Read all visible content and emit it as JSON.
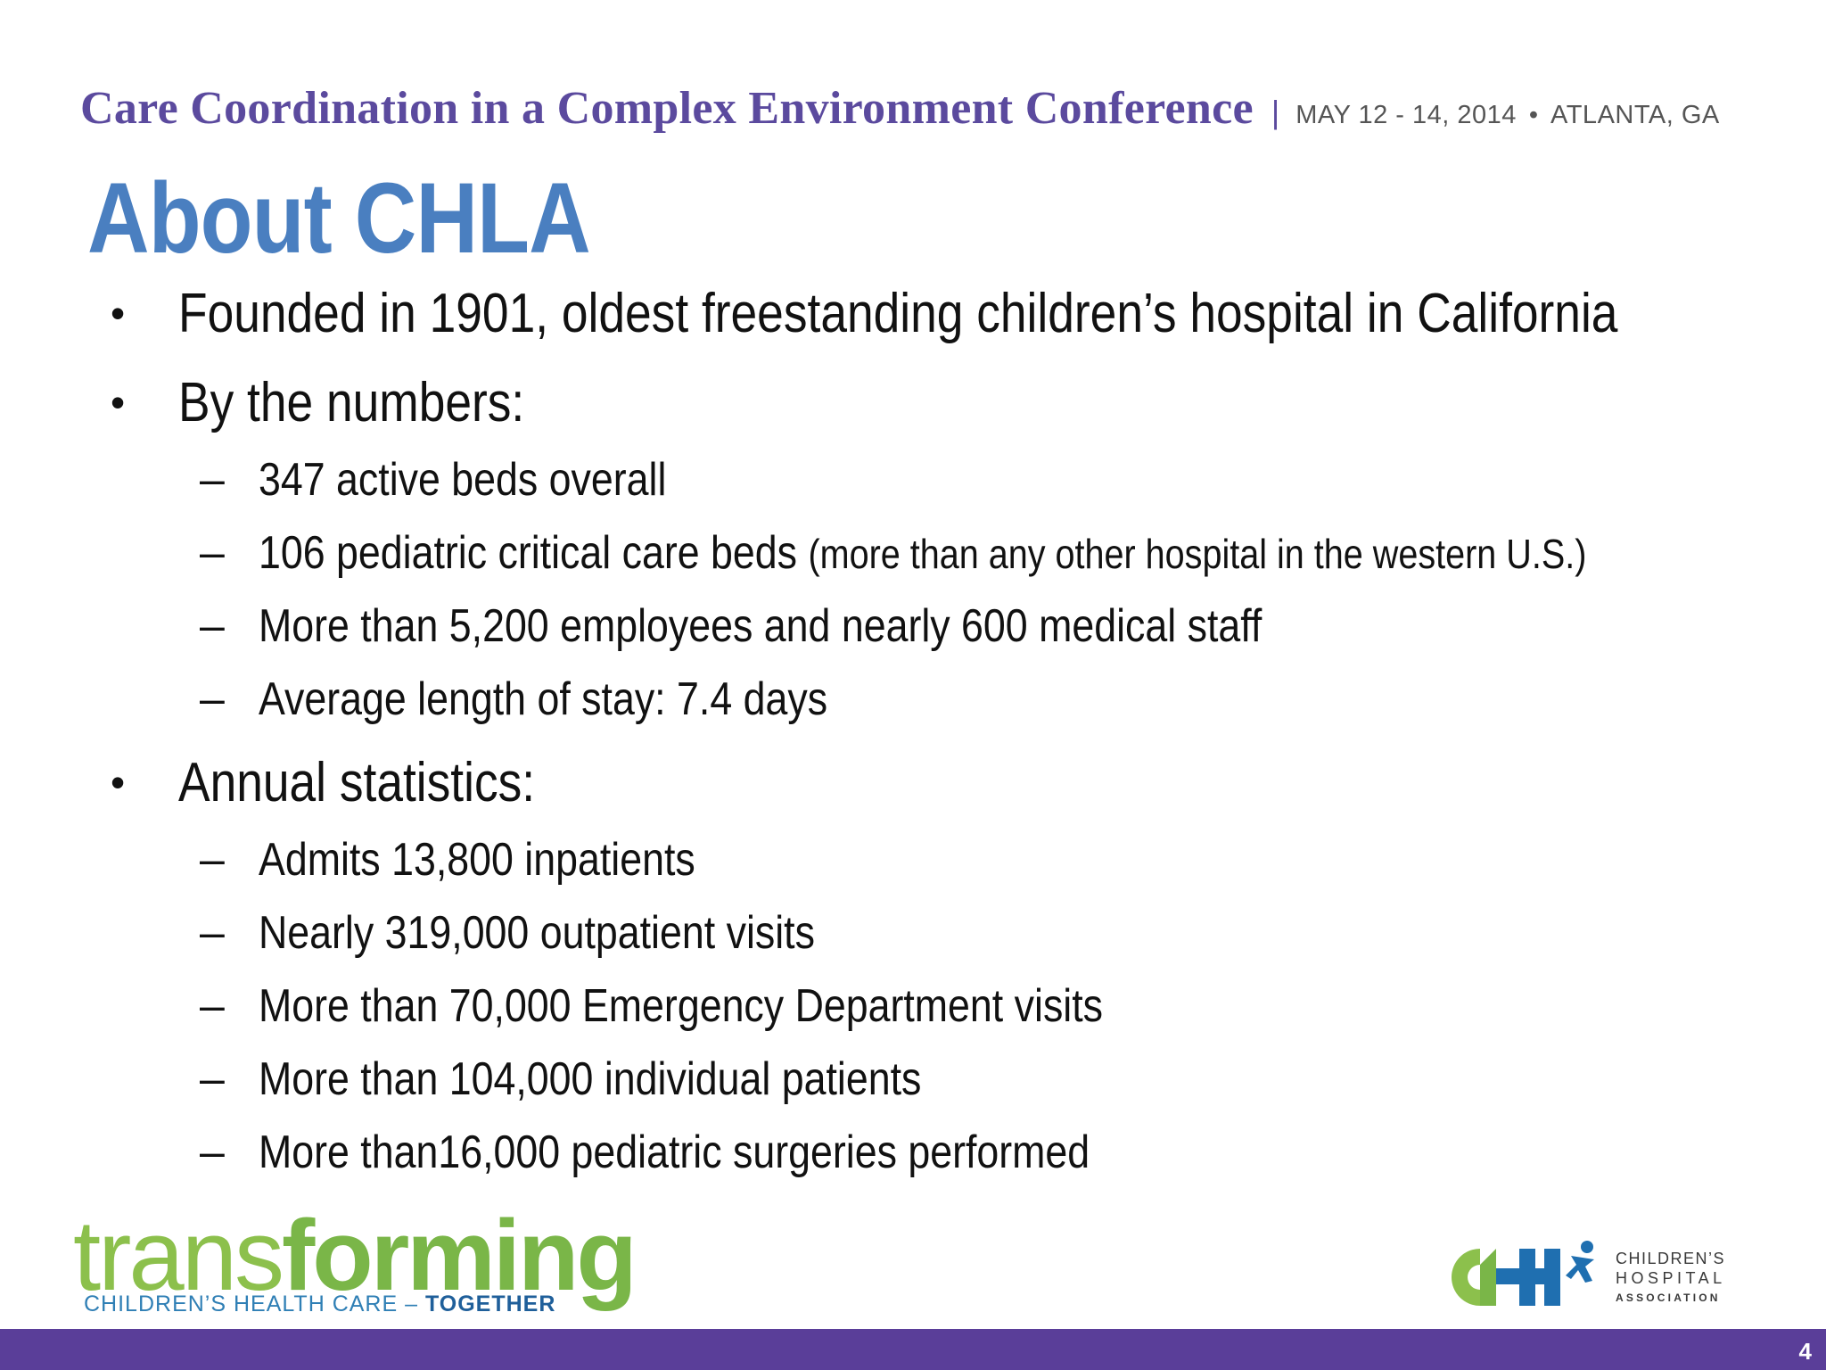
{
  "header": {
    "conference_title": "Care Coordination in a Complex Environment Conference",
    "separator": "|",
    "date": "MAY 12 - 14, 2014",
    "dot": "•",
    "location": "ATLANTA, GA"
  },
  "slide": {
    "title": "About CHLA",
    "bullet_symbol": "•",
    "dash_symbol": "–",
    "bullet1": "Founded in 1901, oldest freestanding children’s hospital in California",
    "bullet2": "By the numbers:",
    "numbers": [
      "347 active beds overall",
      "106 pediatric critical care beds",
      "More than 5,200 employees and nearly 600 medical staff",
      "Average length of stay: 7.4 days"
    ],
    "numbers_aside": "(more than any other hospital in the western U.S.)",
    "bullet3": "Annual statistics:",
    "annual": [
      "Admits 13,800 inpatients",
      "Nearly 319,000 outpatient visits",
      "More than 70,000 Emergency Department visits",
      "More than 104,000 individual patients",
      "More than16,000 pediatric surgeries performed"
    ]
  },
  "footer": {
    "logo_left_word_light": "trans",
    "logo_left_word_bold": "forming",
    "logo_left_tagline": "CHILDREN’S HEALTH CARE",
    "logo_left_tagline_dash": "–",
    "logo_left_tagline_bold": "TOGETHER",
    "logo_right_line1": "CHILDREN’S",
    "logo_right_line2": "HOSPITAL",
    "logo_right_line3": "ASSOCIATION",
    "page_number": "4",
    "bar_color": "#5a3e99"
  },
  "colors": {
    "title": "#4a7fc0",
    "conference_title": "#5b4a9e",
    "logo_green": "#7ab648",
    "logo_blue": "#1f6fb0"
  }
}
